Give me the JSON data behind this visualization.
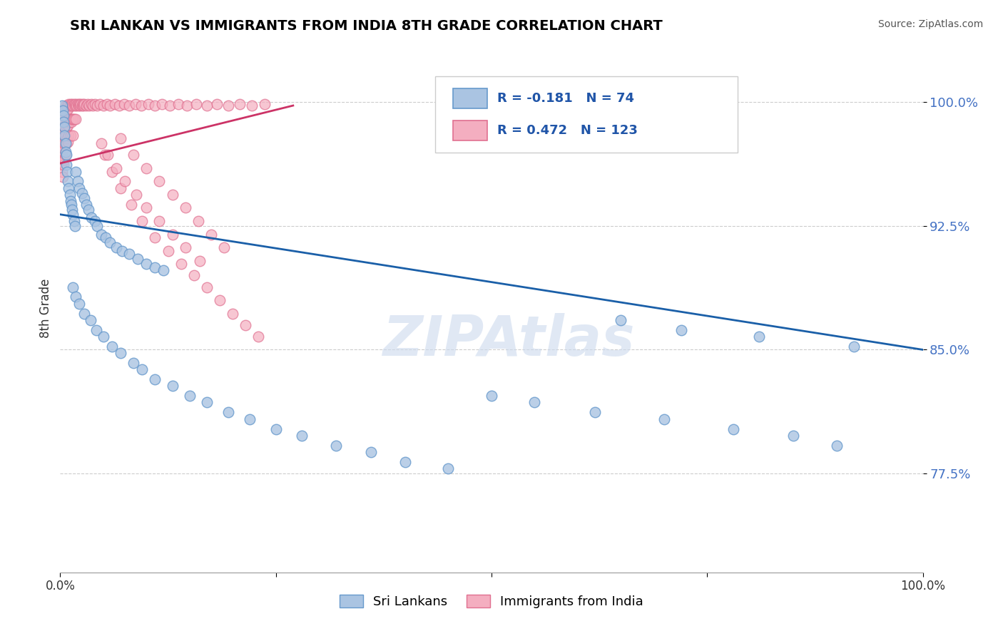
{
  "title": "SRI LANKAN VS IMMIGRANTS FROM INDIA 8TH GRADE CORRELATION CHART",
  "source": "Source: ZipAtlas.com",
  "ylabel": "8th Grade",
  "ytick_labels": [
    "77.5%",
    "85.0%",
    "92.5%",
    "100.0%"
  ],
  "ytick_values": [
    0.775,
    0.85,
    0.925,
    1.0
  ],
  "xlim": [
    0.0,
    1.0
  ],
  "ylim": [
    0.715,
    1.035
  ],
  "blue_R": -0.181,
  "blue_N": 74,
  "pink_R": 0.472,
  "pink_N": 123,
  "blue_color": "#aac4e2",
  "blue_edge_color": "#6699cc",
  "blue_line_color": "#1a5fa8",
  "pink_color": "#f4aec0",
  "pink_edge_color": "#e07090",
  "pink_line_color": "#cc3366",
  "legend_label_blue": "Sri Lankans",
  "legend_label_pink": "Immigrants from India",
  "watermark": "ZIPAtlas",
  "blue_line_x0": 0.0,
  "blue_line_y0": 0.932,
  "blue_line_x1": 1.0,
  "blue_line_y1": 0.85,
  "pink_line_x0": 0.0,
  "pink_line_y0": 0.963,
  "pink_line_x1": 0.27,
  "pink_line_y1": 0.998,
  "blue_scatter_x": [
    0.002,
    0.003,
    0.004,
    0.004,
    0.005,
    0.005,
    0.006,
    0.006,
    0.007,
    0.007,
    0.008,
    0.009,
    0.01,
    0.011,
    0.012,
    0.013,
    0.014,
    0.015,
    0.016,
    0.017,
    0.018,
    0.02,
    0.022,
    0.025,
    0.028,
    0.03,
    0.033,
    0.036,
    0.04,
    0.043,
    0.048,
    0.053,
    0.058,
    0.065,
    0.072,
    0.08,
    0.09,
    0.1,
    0.11,
    0.12,
    0.015,
    0.018,
    0.022,
    0.028,
    0.035,
    0.042,
    0.05,
    0.06,
    0.07,
    0.085,
    0.095,
    0.11,
    0.13,
    0.15,
    0.17,
    0.195,
    0.22,
    0.25,
    0.28,
    0.32,
    0.36,
    0.4,
    0.45,
    0.5,
    0.55,
    0.62,
    0.7,
    0.78,
    0.85,
    0.9,
    0.65,
    0.72,
    0.81,
    0.92
  ],
  "blue_scatter_y": [
    0.998,
    0.995,
    0.992,
    0.988,
    0.985,
    0.98,
    0.975,
    0.97,
    0.968,
    0.962,
    0.958,
    0.952,
    0.948,
    0.944,
    0.94,
    0.938,
    0.935,
    0.932,
    0.928,
    0.925,
    0.958,
    0.952,
    0.948,
    0.945,
    0.942,
    0.938,
    0.935,
    0.93,
    0.928,
    0.925,
    0.92,
    0.918,
    0.915,
    0.912,
    0.91,
    0.908,
    0.905,
    0.902,
    0.9,
    0.898,
    0.888,
    0.882,
    0.878,
    0.872,
    0.868,
    0.862,
    0.858,
    0.852,
    0.848,
    0.842,
    0.838,
    0.832,
    0.828,
    0.822,
    0.818,
    0.812,
    0.808,
    0.802,
    0.798,
    0.792,
    0.788,
    0.782,
    0.778,
    0.822,
    0.818,
    0.812,
    0.808,
    0.802,
    0.798,
    0.792,
    0.868,
    0.862,
    0.858,
    0.852
  ],
  "pink_scatter_x": [
    0.001,
    0.001,
    0.002,
    0.002,
    0.002,
    0.003,
    0.003,
    0.003,
    0.003,
    0.004,
    0.004,
    0.004,
    0.004,
    0.005,
    0.005,
    0.005,
    0.005,
    0.006,
    0.006,
    0.006,
    0.006,
    0.007,
    0.007,
    0.007,
    0.008,
    0.008,
    0.008,
    0.009,
    0.009,
    0.009,
    0.01,
    0.01,
    0.01,
    0.011,
    0.011,
    0.012,
    0.012,
    0.012,
    0.013,
    0.013,
    0.014,
    0.014,
    0.015,
    0.015,
    0.015,
    0.016,
    0.016,
    0.017,
    0.018,
    0.018,
    0.019,
    0.02,
    0.021,
    0.022,
    0.023,
    0.024,
    0.025,
    0.026,
    0.027,
    0.028,
    0.03,
    0.032,
    0.034,
    0.036,
    0.038,
    0.04,
    0.043,
    0.046,
    0.05,
    0.054,
    0.058,
    0.063,
    0.068,
    0.074,
    0.08,
    0.087,
    0.094,
    0.102,
    0.11,
    0.118,
    0.127,
    0.137,
    0.147,
    0.158,
    0.17,
    0.182,
    0.195,
    0.208,
    0.222,
    0.237,
    0.052,
    0.06,
    0.07,
    0.082,
    0.095,
    0.11,
    0.125,
    0.14,
    0.155,
    0.17,
    0.185,
    0.2,
    0.215,
    0.23,
    0.07,
    0.085,
    0.1,
    0.115,
    0.13,
    0.145,
    0.16,
    0.175,
    0.19,
    0.048,
    0.055,
    0.065,
    0.075,
    0.088,
    0.1,
    0.115,
    0.13,
    0.145,
    0.162
  ],
  "pink_scatter_y": [
    0.972,
    0.962,
    0.978,
    0.968,
    0.958,
    0.985,
    0.975,
    0.965,
    0.955,
    0.992,
    0.982,
    0.972,
    0.962,
    0.995,
    0.985,
    0.975,
    0.965,
    0.998,
    0.99,
    0.98,
    0.968,
    0.995,
    0.985,
    0.975,
    0.998,
    0.988,
    0.978,
    0.996,
    0.986,
    0.976,
    0.999,
    0.99,
    0.98,
    0.998,
    0.988,
    0.999,
    0.99,
    0.98,
    0.998,
    0.988,
    0.999,
    0.99,
    0.998,
    0.99,
    0.98,
    0.999,
    0.99,
    0.998,
    0.999,
    0.99,
    0.998,
    0.999,
    0.998,
    0.999,
    0.998,
    0.999,
    0.998,
    0.999,
    0.998,
    0.999,
    0.998,
    0.999,
    0.998,
    0.999,
    0.998,
    0.999,
    0.998,
    0.999,
    0.998,
    0.999,
    0.998,
    0.999,
    0.998,
    0.999,
    0.998,
    0.999,
    0.998,
    0.999,
    0.998,
    0.999,
    0.998,
    0.999,
    0.998,
    0.999,
    0.998,
    0.999,
    0.998,
    0.999,
    0.998,
    0.999,
    0.968,
    0.958,
    0.948,
    0.938,
    0.928,
    0.918,
    0.91,
    0.902,
    0.895,
    0.888,
    0.88,
    0.872,
    0.865,
    0.858,
    0.978,
    0.968,
    0.96,
    0.952,
    0.944,
    0.936,
    0.928,
    0.92,
    0.912,
    0.975,
    0.968,
    0.96,
    0.952,
    0.944,
    0.936,
    0.928,
    0.92,
    0.912,
    0.904
  ]
}
